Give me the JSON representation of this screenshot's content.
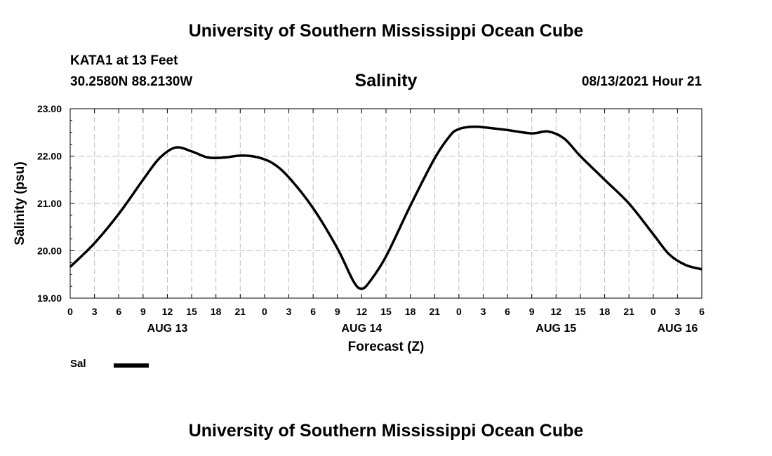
{
  "header": {
    "title": "University of Southern Mississippi Ocean Cube",
    "station": "KATA1 at 13 Feet",
    "coords": "30.2580N  88.2130W",
    "parameter": "Salinity",
    "run_time": "08/13/2021 Hour 21"
  },
  "footer": {
    "title": "University of Southern Mississippi Ocean Cube"
  },
  "legend": {
    "items": [
      {
        "label": "Sal",
        "color": "#000000"
      }
    ]
  },
  "chart_data": {
    "type": "line",
    "title": "Salinity",
    "xlabel": "Forecast (Z)",
    "ylabel": "Salinity (psu)",
    "x_units": "hours from AUG 13 00Z",
    "xlim": [
      0,
      78
    ],
    "ylim": [
      19.0,
      23.0
    ],
    "grid": true,
    "y_ticks": [
      "19.00",
      "20.00",
      "21.00",
      "22.00",
      "23.00"
    ],
    "x_tick_labels": [
      "0",
      "3",
      "6",
      "9",
      "12",
      "15",
      "18",
      "21",
      "0",
      "3",
      "6",
      "9",
      "12",
      "15",
      "18",
      "21",
      "0",
      "3",
      "6",
      "9",
      "12",
      "15",
      "18",
      "21",
      "0",
      "3",
      "6"
    ],
    "date_labels": [
      {
        "hour": 12,
        "label": "AUG 13"
      },
      {
        "hour": 36,
        "label": "AUG 14"
      },
      {
        "hour": 60,
        "label": "AUG 15"
      },
      {
        "hour": 75,
        "label": "AUG 16"
      }
    ],
    "series": [
      {
        "name": "Sal",
        "color": "#000000",
        "x": [
          0,
          3,
          6,
          9,
          11,
          13,
          15,
          17,
          19,
          21,
          23,
          25,
          27,
          30,
          33,
          35,
          36,
          37,
          39,
          42,
          45,
          47,
          48,
          49,
          50,
          51,
          54,
          57,
          59,
          61,
          63,
          66,
          69,
          72,
          74,
          76,
          78
        ],
        "y": [
          19.66,
          20.16,
          20.78,
          21.5,
          21.95,
          22.18,
          22.1,
          21.97,
          21.97,
          22.01,
          21.98,
          21.85,
          21.55,
          20.9,
          20.05,
          19.35,
          19.2,
          19.35,
          19.88,
          20.95,
          21.95,
          22.45,
          22.57,
          22.61,
          22.62,
          22.61,
          22.55,
          22.48,
          22.52,
          22.37,
          22.0,
          21.5,
          21.0,
          20.35,
          19.92,
          19.7,
          19.61
        ]
      }
    ]
  }
}
